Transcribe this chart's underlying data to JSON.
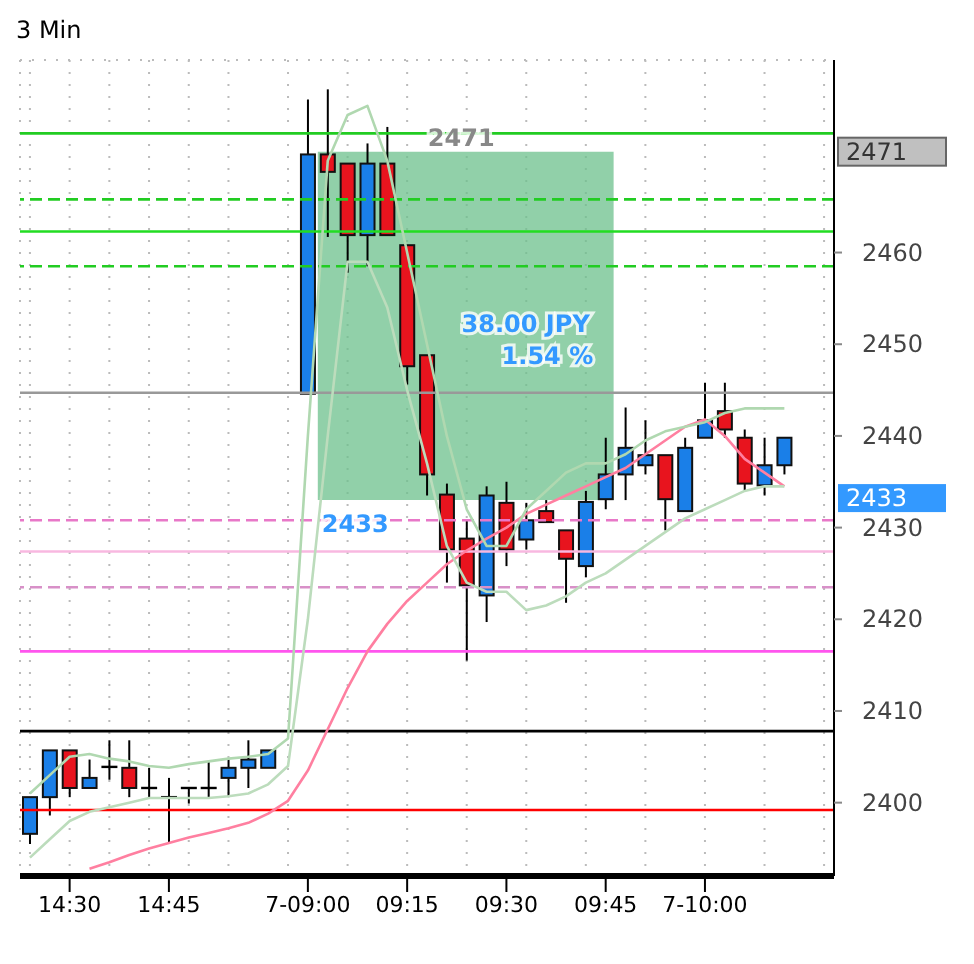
{
  "chart_data": {
    "type": "candlestick",
    "title": "3 Min",
    "categories": [
      null,
      null,
      "14:30",
      null,
      null,
      null,
      null,
      "14:45",
      null,
      null,
      null,
      null,
      null,
      null,
      "7-09:00",
      null,
      null,
      null,
      null,
      "09:15",
      null,
      null,
      null,
      null,
      "09:30",
      null,
      null,
      null,
      null,
      "09:45",
      null,
      null,
      null,
      null,
      "7-10:00",
      null,
      null,
      null,
      null,
      null,
      null
    ],
    "series": [
      {
        "ohlc": [
          [
            2396.6,
            2400.6,
            2395.5,
            2400.6
          ],
          [
            2400.6,
            2405.7,
            2398.6,
            2405.7
          ],
          [
            2405.7,
            2405.7,
            2400.6,
            2401.6
          ],
          [
            2401.6,
            2404.7,
            2401.6,
            2402.7
          ],
          [
            2403.9,
            2406.8,
            2402.5,
            2403.9
          ],
          [
            2403.8,
            2406.8,
            2400.6,
            2401.6
          ],
          [
            2401.6,
            2403.8,
            2400.6,
            2401.6
          ],
          [
            2400.6,
            2402.7,
            2395.6,
            2400.6
          ],
          [
            2401.6,
            2401.6,
            2399.9,
            2401.6
          ],
          [
            2401.6,
            2404.5,
            2400.6,
            2401.6
          ],
          [
            2402.7,
            2404.7,
            2400.6,
            2403.8
          ],
          [
            2403.8,
            2406.8,
            2401.6,
            2404.7
          ],
          [
            2403.8,
            2405.7,
            2403.8,
            2405.7
          ],
          null,
          [
            2444.6,
            2476.7,
            2444.6,
            2470.7
          ],
          [
            2470.7,
            2477.8,
            2461.7,
            2468.8
          ],
          [
            2469.7,
            2469.7,
            2457.8,
            2461.9
          ],
          [
            2461.9,
            2471.9,
            2458.5,
            2469.7
          ],
          [
            2469.7,
            2473.7,
            2461.9,
            2461.9
          ],
          [
            2460.8,
            2460.8,
            2445.6,
            2447.6
          ],
          [
            2448.8,
            2448.8,
            2433.5,
            2435.8
          ],
          [
            2433.6,
            2434.8,
            2424.0,
            2427.6
          ],
          [
            2428.8,
            2430.8,
            2415.5,
            2423.7
          ],
          [
            2422.6,
            2434.5,
            2419.7,
            2433.5
          ],
          [
            2432.7,
            2435,
            2425.8,
            2427.6
          ],
          [
            2428.7,
            2432.7,
            2427.6,
            2430.8
          ],
          [
            2431.8,
            2433,
            2430.6,
            2430.6
          ],
          [
            2429.7,
            2429.7,
            2421.8,
            2426.6
          ],
          [
            2425.8,
            2434,
            2424.6,
            2432.8
          ],
          [
            2433.1,
            2439.8,
            2432,
            2435.8
          ],
          [
            2435.8,
            2443.1,
            2433,
            2438.7
          ],
          [
            2436.8,
            2441.7,
            2435.8,
            2437.9
          ],
          [
            2437.9,
            2437.9,
            2429.7,
            2433.1
          ],
          [
            2431.8,
            2439.8,
            2431.8,
            2438.7
          ],
          [
            2439.8,
            2445.8,
            2439.8,
            2441.7
          ],
          [
            2442.7,
            2445.8,
            2439.8,
            2440.7
          ],
          [
            2439.8,
            2440.7,
            2434,
            2434.8
          ],
          [
            2434.6,
            2439.8,
            2433.5,
            2436.8
          ],
          [
            2436.8,
            2439.8,
            2435.8,
            2439.8
          ],
          null,
          null
        ],
        "colors": [
          "#1a7fe8",
          "#1a7fe8",
          "#e8141e",
          "#1a7fe8",
          "#000000",
          "#e8141e",
          "#000000",
          "#000000",
          "#000000",
          "#000000",
          "#1a7fe8",
          "#1a7fe8",
          "#1a7fe8",
          null,
          "#1a7fe8",
          "#e8141e",
          "#e8141e",
          "#1a7fe8",
          "#e8141e",
          "#e8141e",
          "#e8141e",
          "#e8141e",
          "#e8141e",
          "#1a7fe8",
          "#e8141e",
          "#1a7fe8",
          "#e8141e",
          "#e8141e",
          "#1a7fe8",
          "#1a7fe8",
          "#1a7fe8",
          "#1a7fe8",
          "#e8141e",
          "#1a7fe8",
          "#1a7fe8",
          "#e8141e",
          "#e8141e",
          "#1a7fe8",
          "#1a7fe8",
          null,
          null
        ]
      },
      {
        "type": "line",
        "color": "#ff7fa0",
        "values": [
          null,
          null,
          null,
          2392.8,
          2393.5,
          2394.3,
          2395,
          2395.6,
          2396.2,
          2396.7,
          2397.2,
          2397.8,
          2398.8,
          2400.2,
          2403.5,
          2408,
          2412.5,
          2416.5,
          2419.5,
          2422,
          2424,
          2426,
          2427.5,
          2428.8,
          2430,
          2431.5,
          2432.5,
          2433.5,
          2434.5,
          2435.5,
          2436.5,
          2438,
          2439.5,
          2441,
          2441.8,
          2440,
          2437.5,
          2436,
          2434.5,
          null,
          null
        ]
      },
      {
        "type": "line",
        "color": "#b0d8b0",
        "values": [
          2401,
          2403,
          2405,
          2405.3,
          2404.8,
          2404.5,
          2404,
          2403.8,
          2404.2,
          2404.5,
          2404.8,
          2405,
          2405.3,
          2407,
          2440,
          2470,
          2475,
          2476,
          2470,
          2460,
          2450,
          2440,
          2432,
          2428,
          2428,
          2432,
          2434,
          2436,
          2437,
          2437,
          2438,
          2439.5,
          2440.5,
          2441,
          2441.5,
          2442.5,
          2443,
          2443,
          2443,
          null,
          null
        ]
      },
      {
        "type": "line",
        "color": "#bcdcbc",
        "values": [
          2394,
          2396,
          2398,
          2399,
          2399.5,
          2400,
          2400.5,
          2400.5,
          2400.5,
          2400.5,
          2400.7,
          2401,
          2402,
          2404,
          2420,
          2440,
          2459,
          2459,
          2454,
          2445,
          2437,
          2428,
          2424,
          2423,
          2423,
          2421,
          2421.5,
          2422.5,
          2424,
          2425,
          2426.5,
          2428,
          2429.5,
          2431,
          2432,
          2433,
          2434,
          2434.5,
          2434.5,
          null,
          null
        ]
      }
    ],
    "ylim": [
      2392,
      2481
    ],
    "yticks": [
      2400,
      2410,
      2420,
      2430,
      2440,
      2450,
      2460
    ],
    "grid": true,
    "ref_lines": [
      {
        "axis": "y",
        "value": 2473,
        "color": "#22cc22",
        "line_style": "solid"
      },
      {
        "axis": "y",
        "value": 2465.8,
        "color": "#22cc22",
        "line_style": "dashed"
      },
      {
        "axis": "y",
        "value": 2462.3,
        "color": "#22dd22",
        "line_style": "solid"
      },
      {
        "axis": "y",
        "value": 2458.5,
        "color": "#22cc22",
        "line_style": "dashed"
      },
      {
        "axis": "y",
        "value": 2444.7,
        "color": "#999999",
        "line_style": "solid"
      },
      {
        "axis": "y",
        "value": 2430.8,
        "color": "#e878c8",
        "line_style": "dashed"
      },
      {
        "axis": "y",
        "value": 2427.4,
        "color": "#f8b8e0",
        "line_style": "solid"
      },
      {
        "axis": "y",
        "value": 2423.5,
        "color": "#d890c8",
        "line_style": "dashed"
      },
      {
        "axis": "y",
        "value": 2416.5,
        "color": "#ff55ee",
        "line_style": "solid"
      },
      {
        "axis": "y",
        "value": 2407.8,
        "color": "#000000",
        "line_style": "solid"
      },
      {
        "axis": "y",
        "value": 2399.2,
        "color": "#ff0000",
        "line_style": "solid"
      }
    ],
    "bands": [
      {
        "axis": "y",
        "from": 2433,
        "to": 2471,
        "color": "#6cc08c"
      }
    ],
    "annotations": [
      "2471",
      "2433",
      "38.00 JPY",
      "1.54 %",
      "2471",
      "2433"
    ]
  }
}
